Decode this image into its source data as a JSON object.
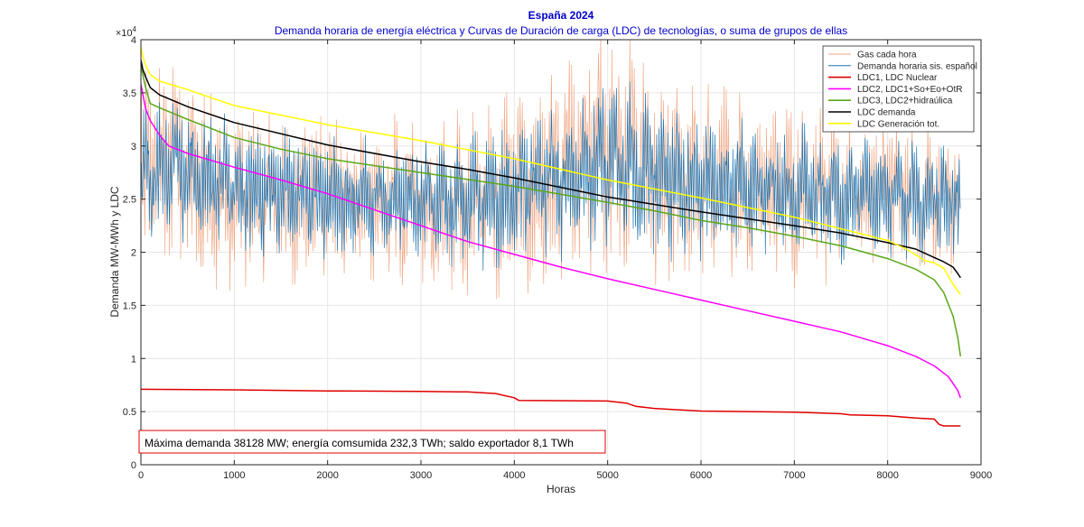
{
  "chart_data": {
    "type": "line",
    "title": "España 2024",
    "subtitle": "Demanda horaria de energía eléctrica y Curvas de Duración de carga (LDC) de tecnologías, o suma de grupos de ellas",
    "xlabel": "Horas",
    "ylabel": "Demanda MW-MWh y LDC",
    "xlim": [
      0,
      9000
    ],
    "ylim": [
      0,
      40000
    ],
    "x_ticks": [
      0,
      1000,
      2000,
      3000,
      4000,
      5000,
      6000,
      7000,
      8000,
      9000
    ],
    "x_tick_labels": [
      "0",
      "1000",
      "2000",
      "3000",
      "4000",
      "5000",
      "6000",
      "7000",
      "8000",
      "9000"
    ],
    "y_ticks": [
      0,
      5000,
      10000,
      15000,
      20000,
      25000,
      30000,
      35000,
      40000
    ],
    "y_tick_labels": [
      "0",
      "0.5",
      "1",
      "1.5",
      "2",
      "2.5",
      "3",
      "3.5",
      "4"
    ],
    "y_exponent": "×10",
    "y_exponent_power": "4",
    "grid": true,
    "legend_position": "top-right",
    "annotation": "Máxima demanda 38128 MW; energía comsumida 232,3 TWh; saldo exportador 8,1 TWh",
    "colors": {
      "gas": "#f0a785",
      "demand": "#1f77b4",
      "ldc1": "#e00000",
      "ldc2": "#ff00ff",
      "ldc3": "#59a817",
      "ldc_demand": "#000000",
      "ldc_gen": "#ffff00",
      "title": "#0000cc",
      "annotation_border": "#e00000"
    },
    "series": [
      {
        "key": "gas",
        "name": "Gas cada hora",
        "kind": "noisy",
        "color": "#f0a785",
        "base_x": [
          0,
          300,
          600,
          1000,
          1500,
          2000,
          2500,
          3000,
          3500,
          4000,
          4500,
          4800,
          5000,
          5200,
          5500,
          6000,
          6500,
          7000,
          7500,
          8000,
          8500,
          8780
        ],
        "base_y": [
          26000,
          29000,
          27000,
          25500,
          25000,
          25500,
          25000,
          24500,
          24500,
          25500,
          27500,
          29000,
          30000,
          29000,
          27500,
          26500,
          26000,
          25500,
          25500,
          26000,
          25500,
          25000
        ],
        "amplitude": [
          8500,
          9000,
          8500,
          7500,
          7000,
          7000,
          7000,
          7000,
          7500,
          8000,
          9000,
          10000,
          10500,
          10000,
          9000,
          8000,
          7500,
          7500,
          7000,
          6500,
          6500,
          6000
        ]
      },
      {
        "key": "demand",
        "name": "Demanda horaria sis. español",
        "kind": "noisy",
        "color": "#1f77b4",
        "base_x": [
          0,
          300,
          600,
          1000,
          1500,
          2000,
          2500,
          3000,
          3500,
          4000,
          4500,
          4800,
          5000,
          5200,
          5500,
          6000,
          6500,
          7000,
          7500,
          8000,
          8500,
          8780
        ],
        "base_y": [
          26500,
          28500,
          27000,
          26000,
          25500,
          25500,
          25000,
          25000,
          25000,
          25500,
          27000,
          28000,
          28500,
          28000,
          27000,
          26500,
          26000,
          25500,
          25500,
          25500,
          25000,
          24500
        ],
        "amplitude": [
          6500,
          7000,
          6000,
          5500,
          5500,
          5000,
          5000,
          5000,
          5500,
          6000,
          6500,
          7000,
          7000,
          6800,
          6500,
          6000,
          5500,
          5500,
          5500,
          5000,
          5000,
          5000
        ]
      },
      {
        "key": "ldc1",
        "name": "LDC1, LDC Nuclear",
        "kind": "line",
        "color": "#e00000",
        "x": [
          0,
          1000,
          2000,
          3000,
          3500,
          3800,
          4000,
          4050,
          5000,
          5200,
          5300,
          5500,
          5800,
          6000,
          7000,
          7500,
          7600,
          8000,
          8300,
          8500,
          8550,
          8600,
          8780
        ],
        "y": [
          7100,
          7050,
          6950,
          6900,
          6850,
          6700,
          6300,
          6050,
          6000,
          5800,
          5500,
          5300,
          5150,
          5050,
          4950,
          4800,
          4700,
          4600,
          4400,
          4300,
          3800,
          3650,
          3650
        ]
      },
      {
        "key": "ldc2",
        "name": "LDC2, LDC1+So+Eo+OtR",
        "kind": "line",
        "color": "#ff00ff",
        "x": [
          0,
          50,
          100,
          200,
          300,
          500,
          1000,
          1500,
          2000,
          2500,
          3000,
          3500,
          4000,
          4500,
          5000,
          5500,
          6000,
          6500,
          7000,
          7500,
          8000,
          8300,
          8500,
          8650,
          8750,
          8780
        ],
        "y": [
          35800,
          33500,
          32400,
          31000,
          30000,
          29300,
          28000,
          26800,
          25500,
          24000,
          22500,
          21000,
          19800,
          18600,
          17500,
          16500,
          15500,
          14500,
          13500,
          12500,
          11200,
          10200,
          9300,
          8300,
          7000,
          6300
        ]
      },
      {
        "key": "ldc3",
        "name": "LDC3, LDC2+hidraúlica",
        "kind": "line",
        "color": "#59a817",
        "x": [
          0,
          50,
          100,
          200,
          500,
          1000,
          1500,
          2000,
          3000,
          4000,
          5000,
          5500,
          6000,
          6500,
          7000,
          7500,
          8000,
          8300,
          8500,
          8600,
          8700,
          8750,
          8780
        ],
        "y": [
          37500,
          35500,
          34000,
          33600,
          32500,
          30800,
          29700,
          28800,
          27500,
          26200,
          24700,
          23900,
          23000,
          22300,
          21500,
          20600,
          19400,
          18400,
          17400,
          16200,
          14000,
          12000,
          10200
        ]
      },
      {
        "key": "ldc_demand",
        "name": "LDC demanda",
        "kind": "line",
        "color": "#000000",
        "x": [
          0,
          20,
          50,
          100,
          200,
          500,
          1000,
          2000,
          3000,
          3500,
          4000,
          5000,
          6000,
          7000,
          7500,
          8000,
          8300,
          8500,
          8600,
          8700,
          8750,
          8780
        ],
        "y": [
          38100,
          37200,
          36500,
          35500,
          34800,
          33700,
          32200,
          30100,
          28500,
          27800,
          27000,
          25200,
          23800,
          22500,
          21800,
          20900,
          20300,
          19500,
          19100,
          18600,
          18000,
          17600
        ]
      },
      {
        "key": "ldc_gen",
        "name": "LDC Generación tot.",
        "kind": "line",
        "color": "#ffff00",
        "x": [
          0,
          20,
          50,
          100,
          200,
          500,
          1000,
          2000,
          3000,
          4000,
          5000,
          6000,
          7000,
          8000,
          8200,
          8400,
          8500,
          8600,
          8700,
          8780
        ],
        "y": [
          39300,
          38400,
          37600,
          36700,
          36100,
          35300,
          33800,
          32000,
          30500,
          28800,
          26800,
          25100,
          23300,
          21100,
          20300,
          19200,
          19000,
          18500,
          17000,
          16000
        ]
      }
    ]
  }
}
